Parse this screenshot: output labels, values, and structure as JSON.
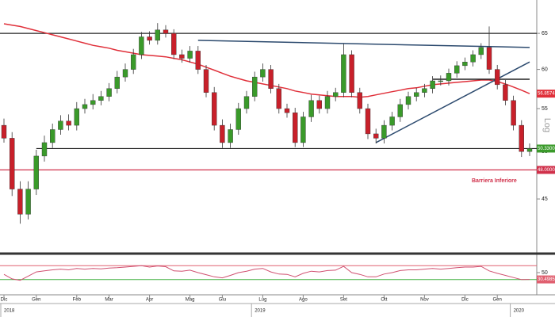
{
  "chart_data": {
    "type": "candlestick",
    "log_scale": true,
    "scale_label": "Log",
    "ylim": [
      40,
      70
    ],
    "yticks": [
      65,
      60,
      55,
      50,
      45
    ],
    "open": [
      53,
      51.5,
      46,
      43.5,
      46,
      49.5,
      51,
      52.5,
      53.5,
      53,
      55,
      55.5,
      56,
      56.5,
      57.5,
      59,
      60,
      62,
      64.5,
      64,
      65.5,
      65,
      62,
      61.5,
      62.5,
      60,
      57,
      53,
      51,
      52.5,
      55,
      56.5,
      59,
      60,
      57.5,
      55,
      54.5,
      51,
      54,
      56,
      55,
      56.5,
      57,
      62,
      57,
      55,
      52,
      51.5,
      53,
      54,
      55.5,
      56.5,
      57,
      57.5,
      58.5,
      58.5,
      59.5,
      60.5,
      61,
      62,
      63,
      60,
      58,
      56,
      53,
      50
    ],
    "high": [
      53.8,
      52.2,
      46.8,
      46.8,
      50.2,
      51.8,
      53.2,
      54.2,
      54.3,
      55.8,
      56.2,
      56.8,
      57.2,
      58.2,
      59.8,
      60.8,
      62.8,
      65.2,
      65.3,
      66.5,
      66.2,
      65.6,
      62.7,
      63.2,
      63.2,
      60.6,
      57.7,
      53.7,
      53.2,
      55.7,
      57.2,
      59.7,
      60.8,
      60.6,
      58.1,
      55.6,
      55.1,
      54.6,
      56.7,
      56.6,
      57.2,
      57.6,
      63.5,
      62.6,
      57.6,
      55.6,
      52.6,
      53.6,
      54.6,
      56.2,
      57.1,
      57.6,
      58.1,
      59.1,
      59.2,
      60.1,
      61.1,
      61.6,
      62.6,
      63.6,
      66,
      60.6,
      58.6,
      56.6,
      53.6,
      50.9
    ],
    "low": [
      51,
      45.3,
      42.6,
      43,
      45.4,
      48.9,
      50.4,
      51.9,
      52.4,
      52.4,
      54.4,
      54.9,
      55.4,
      55.9,
      56.9,
      58.4,
      59.4,
      61.4,
      63.4,
      63.4,
      64.4,
      61.4,
      60.9,
      60.9,
      59.4,
      56.4,
      52.4,
      50.4,
      50.4,
      51.9,
      54.4,
      55.9,
      58.4,
      56.9,
      54.4,
      53.9,
      50.5,
      50.5,
      53.4,
      54.4,
      54.4,
      55.9,
      56.4,
      56.4,
      54.4,
      51.4,
      50.9,
      50.9,
      52.4,
      53.4,
      54.9,
      55.9,
      56.4,
      56.9,
      57.9,
      57.9,
      58.9,
      59.9,
      60.4,
      61.4,
      59.4,
      57.4,
      55.4,
      52.4,
      49.4,
      49.5
    ],
    "close": [
      51.5,
      46,
      43.5,
      46,
      49.5,
      51,
      52.5,
      53.5,
      53,
      55,
      55.5,
      56,
      56.5,
      57.5,
      59,
      60,
      62,
      64.5,
      64,
      65.5,
      65,
      62,
      61.5,
      62.5,
      60,
      57,
      53,
      51,
      52.5,
      55,
      56.5,
      59,
      60,
      57.5,
      55,
      54.5,
      51,
      54,
      56,
      55,
      56.5,
      57,
      62,
      57,
      55,
      52,
      51.5,
      53,
      54,
      55.5,
      56.5,
      57,
      57.5,
      58.5,
      58.5,
      59.5,
      60.5,
      61,
      62,
      63,
      60,
      58,
      56,
      53,
      50,
      50.33
    ],
    "up_color": "#3a9a2a",
    "down_color": "#c8202a",
    "moving_average": {
      "color": "#e0303a",
      "values": [
        66.4,
        66.2,
        66.0,
        65.7,
        65.4,
        65.1,
        64.8,
        64.5,
        64.2,
        63.9,
        63.6,
        63.3,
        63.1,
        62.9,
        62.6,
        62.4,
        62.2,
        62.0,
        61.9,
        61.8,
        61.7,
        61.5,
        61.3,
        61.0,
        60.7,
        60.3,
        59.9,
        59.5,
        59.1,
        58.8,
        58.5,
        58.3,
        58.1,
        57.9,
        57.7,
        57.5,
        57.2,
        57.0,
        56.8,
        56.7,
        56.6,
        56.5,
        56.5,
        56.5,
        56.4,
        56.5,
        56.7,
        56.9,
        57.1,
        57.3,
        57.5,
        57.6,
        57.8,
        58.0,
        58.1,
        58.2,
        58.3,
        58.4,
        58.5,
        58.6,
        58.6,
        58.4,
        58.1,
        57.7,
        57.3,
        56.8574
      ]
    },
    "levels": [
      {
        "value": 65,
        "color": "#222222"
      },
      {
        "value": 50.33,
        "label": "50.3300",
        "color": "#222222",
        "box_color": "#3a9a2a",
        "from": 4
      },
      {
        "value": 48,
        "label": "48.0000",
        "color": "#d0304a",
        "box_color": "#d0304a",
        "note": "Barriera Inferiore"
      }
    ],
    "trendlines": [
      {
        "from": [
          24,
          64
        ],
        "to": [
          65,
          63
        ],
        "color": "#2c4a6e"
      },
      {
        "from": [
          46,
          51
        ],
        "to": [
          65,
          61
        ],
        "color": "#2c4a6e"
      },
      {
        "from": [
          53,
          58.7
        ],
        "to": [
          65,
          58.7
        ],
        "color": "#222222"
      }
    ],
    "rsi": {
      "color": "#d05070",
      "ylim": [
        0,
        100
      ],
      "yticks": [
        50
      ],
      "upper": 70,
      "lower": 30,
      "upper_color": "#e06070",
      "lower_color": "#40b040",
      "values": [
        45,
        32,
        28,
        40,
        52,
        55,
        58,
        60,
        58,
        62,
        60,
        62,
        61,
        63,
        64,
        66,
        68,
        70,
        66,
        69,
        67,
        55,
        54,
        57,
        50,
        44,
        38,
        35,
        42,
        50,
        54,
        60,
        62,
        52,
        46,
        45,
        38,
        48,
        54,
        52,
        56,
        57,
        68,
        50,
        45,
        38,
        38,
        46,
        50,
        56,
        58,
        58,
        60,
        62,
        60,
        62,
        64,
        66,
        66,
        68,
        55,
        48,
        42,
        36,
        30,
        30.4985
      ]
    },
    "months": [
      {
        "label": "Dic",
        "at": 0
      },
      {
        "label": "Gen",
        "at": 4
      },
      {
        "label": "Feb",
        "at": 9
      },
      {
        "label": "Mar",
        "at": 13
      },
      {
        "label": "Apr",
        "at": 18
      },
      {
        "label": "Mag",
        "at": 23
      },
      {
        "label": "Giu",
        "at": 27
      },
      {
        "label": "Lug",
        "at": 32
      },
      {
        "label": "Ago",
        "at": 37
      },
      {
        "label": "Set",
        "at": 42
      },
      {
        "label": "Ott",
        "at": 47
      },
      {
        "label": "Nov",
        "at": 52
      },
      {
        "label": "Dic",
        "at": 57
      },
      {
        "label": "Gen",
        "at": 61
      }
    ],
    "years": [
      {
        "label": "2018",
        "at": 0
      },
      {
        "label": "2019",
        "at": 31
      },
      {
        "label": "2020",
        "at": 63
      }
    ]
  }
}
